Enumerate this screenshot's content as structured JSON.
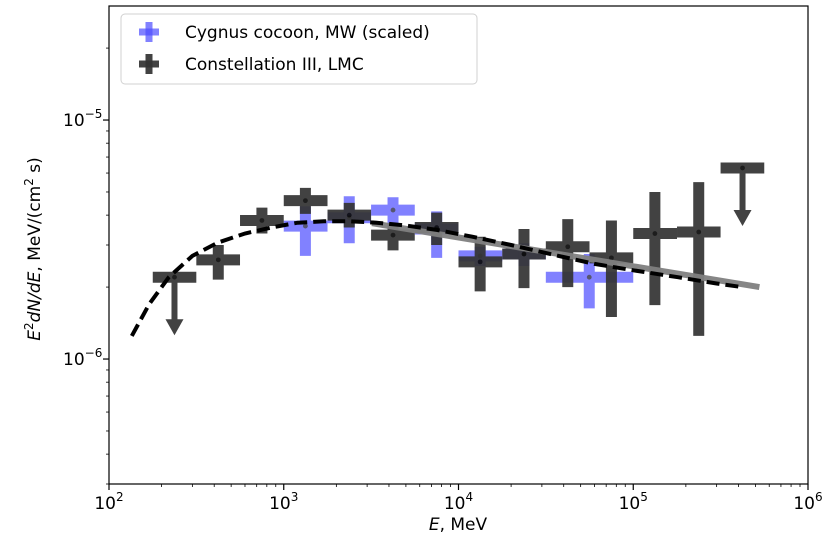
{
  "chart_data": {
    "type": "scatter",
    "title": "",
    "xlabel": "E, MeV",
    "ylabel": "E²dN/dE, MeV/(cm² s)",
    "xscale": "log",
    "yscale": "log",
    "xlim": [
      100,
      1000000
    ],
    "ylim": [
      3e-07,
      3e-05
    ],
    "x_ticks": [
      {
        "value": 100,
        "base": "10",
        "exp": "2"
      },
      {
        "value": 1000,
        "base": "10",
        "exp": "3"
      },
      {
        "value": 10000,
        "base": "10",
        "exp": "4"
      },
      {
        "value": 100000,
        "base": "10",
        "exp": "5"
      },
      {
        "value": 1000000,
        "base": "10",
        "exp": "6"
      }
    ],
    "y_ticks": [
      {
        "value": 1e-06,
        "base": "10",
        "exp": "−6"
      },
      {
        "value": 1e-05,
        "base": "10",
        "exp": "−5"
      }
    ],
    "legend_position": "top-left",
    "legend": [
      {
        "label": "Cygnus cocoon, MW (scaled)",
        "color": "#4d4dff"
      },
      {
        "label": "Constellation III, LMC",
        "color": "#333333"
      }
    ],
    "series": [
      {
        "name": "Cygnus cocoon, MW (scaled)",
        "color": "#4d4dff",
        "opacity": 0.7,
        "points": [
          {
            "x": 1330,
            "y": 3.6e-06,
            "xlo": 1000,
            "xhi": 1780,
            "ylo": 2.7e-06,
            "yhi": 4.35e-06
          },
          {
            "x": 2370,
            "y": 3.9e-06,
            "xlo": 1780,
            "xhi": 3160,
            "ylo": 3.05e-06,
            "yhi": 4.8e-06
          },
          {
            "x": 4220,
            "y": 4.2e-06,
            "xlo": 3160,
            "xhi": 5620,
            "ylo": 3.55e-06,
            "yhi": 4.75e-06
          },
          {
            "x": 7500,
            "y": 3.5e-06,
            "xlo": 5620,
            "xhi": 10000,
            "ylo": 2.65e-06,
            "yhi": 4.15e-06
          },
          {
            "x": 13300,
            "y": 2.7e-06,
            "xlo": 10000,
            "xhi": 17800,
            "ylo": 2.45e-06,
            "yhi": 2.95e-06
          },
          {
            "x": 23700,
            "y": 2.75e-06,
            "xlo": 17800,
            "xhi": 31600,
            "ylo": 2.45e-06,
            "yhi": 3.05e-06
          },
          {
            "x": 56000,
            "y": 2.2e-06,
            "xlo": 31600,
            "xhi": 100000,
            "ylo": 1.63e-06,
            "yhi": 2.75e-06
          }
        ]
      },
      {
        "name": "Constellation III, LMC",
        "color": "#333333",
        "opacity": 0.92,
        "points": [
          {
            "x": 237,
            "y": 2.2e-06,
            "xlo": 178,
            "xhi": 316,
            "upper_limit": true
          },
          {
            "x": 422,
            "y": 2.6e-06,
            "xlo": 316,
            "xhi": 562,
            "ylo": 2.15e-06,
            "yhi": 3e-06
          },
          {
            "x": 750,
            "y": 3.8e-06,
            "xlo": 562,
            "xhi": 1000,
            "ylo": 3.35e-06,
            "yhi": 4.3e-06
          },
          {
            "x": 1330,
            "y": 4.6e-06,
            "xlo": 1000,
            "xhi": 1780,
            "ylo": 4.05e-06,
            "yhi": 5.2e-06
          },
          {
            "x": 2370,
            "y": 4e-06,
            "xlo": 1780,
            "xhi": 3160,
            "ylo": 3.55e-06,
            "yhi": 4.5e-06
          },
          {
            "x": 4220,
            "y": 3.3e-06,
            "xlo": 3160,
            "xhi": 5620,
            "ylo": 2.85e-06,
            "yhi": 3.7e-06
          },
          {
            "x": 7500,
            "y": 3.55e-06,
            "xlo": 5620,
            "xhi": 10000,
            "ylo": 3e-06,
            "yhi": 4.1e-06
          },
          {
            "x": 13300,
            "y": 2.55e-06,
            "xlo": 10000,
            "xhi": 17800,
            "ylo": 1.92e-06,
            "yhi": 3.25e-06
          },
          {
            "x": 23700,
            "y": 2.75e-06,
            "xlo": 17800,
            "xhi": 31600,
            "ylo": 1.98e-06,
            "yhi": 3.5e-06
          },
          {
            "x": 42200,
            "y": 2.95e-06,
            "xlo": 31600,
            "xhi": 56200,
            "ylo": 2e-06,
            "yhi": 3.85e-06
          },
          {
            "x": 75000,
            "y": 2.65e-06,
            "xlo": 56200,
            "xhi": 100000,
            "ylo": 1.5e-06,
            "yhi": 3.8e-06
          },
          {
            "x": 133000,
            "y": 3.35e-06,
            "xlo": 100000,
            "xhi": 178000,
            "ylo": 1.68e-06,
            "yhi": 5e-06
          },
          {
            "x": 237000,
            "y": 3.4e-06,
            "xlo": 178000,
            "xhi": 316000,
            "ylo": 1.25e-06,
            "yhi": 5.5e-06
          },
          {
            "x": 422000,
            "y": 6.3e-06,
            "xlo": 316000,
            "xhi": 562000,
            "upper_limit": true
          }
        ]
      }
    ],
    "model_curves": [
      {
        "name": "power-law fit",
        "style": "solid",
        "color": "#808080",
        "points": [
          [
            3200,
            3.7e-06
          ],
          [
            527000,
            2e-06
          ]
        ]
      },
      {
        "name": "model",
        "style": "dashed",
        "color": "#000000",
        "points": [
          [
            135,
            1.25e-06
          ],
          [
            170,
            1.7e-06
          ],
          [
            220,
            2.2e-06
          ],
          [
            300,
            2.7e-06
          ],
          [
            420,
            3.07e-06
          ],
          [
            600,
            3.35e-06
          ],
          [
            850,
            3.55e-06
          ],
          [
            1200,
            3.72e-06
          ],
          [
            1700,
            3.77e-06
          ],
          [
            2400,
            3.77e-06
          ],
          [
            3400,
            3.72e-06
          ],
          [
            5000,
            3.62e-06
          ],
          [
            7500,
            3.47e-06
          ],
          [
            12000,
            3.25e-06
          ],
          [
            20000,
            3e-06
          ],
          [
            35000,
            2.73e-06
          ],
          [
            60000,
            2.5e-06
          ],
          [
            100000,
            2.35e-06
          ],
          [
            180000,
            2.2e-06
          ],
          [
            300000,
            2.07e-06
          ],
          [
            420000,
            2e-06
          ]
        ]
      }
    ]
  }
}
